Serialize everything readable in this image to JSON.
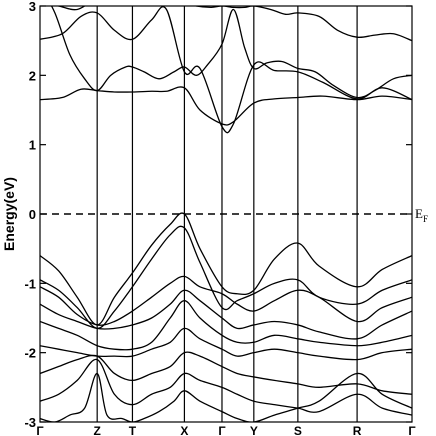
{
  "chart_data": {
    "type": "line",
    "title": "",
    "xlabel": "",
    "ylabel": "Energy(eV)",
    "ylim": [
      -3,
      3
    ],
    "yticks": [
      "-3",
      "-2",
      "-1",
      "0",
      "1",
      "2",
      "3"
    ],
    "ytick_values": [
      -3,
      -2,
      -1,
      0,
      1,
      2,
      3
    ],
    "kpath_labels": [
      "Γ",
      "Z",
      "T",
      "X",
      "Γ",
      "Y",
      "S",
      "R",
      "Γ"
    ],
    "kpath_positions": [
      0,
      1.537,
      2.485,
      3.882,
      4.892,
      5.748,
      6.932,
      8.524,
      10
    ],
    "fermi_level": 0,
    "fermi_label": "E",
    "fermi_subscript": "F",
    "colors": {
      "line": "#000000",
      "axis": "#000000",
      "background": "#ffffff"
    },
    "series": [
      {
        "x": [
          0,
          0.6,
          1.1,
          1.537,
          2.0,
          2.485,
          3.0,
          3.4,
          3.882,
          4.3,
          4.892,
          5.2,
          5.748,
          6.3,
          6.932,
          7.6,
          8.524,
          9.2,
          10
        ],
        "values": [
          1.65,
          1.68,
          1.8,
          1.78,
          1.76,
          1.76,
          1.77,
          1.77,
          1.82,
          1.5,
          1.3,
          1.33,
          1.6,
          1.66,
          1.68,
          1.7,
          1.65,
          1.7,
          1.65
        ]
      },
      {
        "x": [
          0,
          0.6,
          1.1,
          1.537,
          2.0,
          2.485,
          3.0,
          3.4,
          3.882,
          4.3,
          4.892,
          5.2,
          5.748,
          6.3,
          6.932,
          7.6,
          8.524,
          9.2,
          10
        ],
        "values": [
          2.52,
          2.6,
          2.85,
          2.9,
          2.65,
          2.52,
          2.8,
          2.95,
          2.05,
          2.1,
          1.26,
          1.3,
          2.15,
          2.07,
          2.05,
          1.9,
          1.66,
          1.82,
          1.65
        ]
      },
      {
        "x": [
          0,
          0.4,
          0.8,
          1.2,
          1.537,
          1.9,
          2.3,
          2.485,
          2.8,
          3.2,
          3.6,
          3.882,
          4.2,
          4.5,
          4.892,
          5.2,
          5.5,
          5.748,
          6.1,
          6.5,
          6.932,
          7.4,
          7.9,
          8.524,
          9.0,
          9.5,
          10
        ],
        "values": [
          3.3,
          2.9,
          2.3,
          1.95,
          1.78,
          2.0,
          2.12,
          2.12,
          2.05,
          1.95,
          2.05,
          2.12,
          2.0,
          2.15,
          2.45,
          2.95,
          2.4,
          2.1,
          2.18,
          2.2,
          2.1,
          2.05,
          1.85,
          1.68,
          1.78,
          1.95,
          2.0
        ]
      },
      {
        "x": [
          0,
          0.5,
          1.0,
          1.537,
          2.0,
          2.485,
          3.0,
          3.5,
          3.882,
          4.2,
          4.6,
          4.892,
          5.2,
          5.5,
          5.748,
          6.2,
          6.6,
          6.932,
          7.5,
          8.0,
          8.524,
          9.0,
          9.5,
          10
        ],
        "values": [
          3.05,
          3.0,
          2.95,
          3.1,
          3.05,
          3.1,
          3.1,
          3.05,
          3.05,
          3.0,
          2.98,
          3.0,
          2.98,
          2.98,
          3.0,
          2.95,
          2.88,
          2.9,
          2.85,
          2.65,
          2.55,
          2.58,
          2.6,
          2.5
        ]
      },
      {
        "x": [
          0,
          0.5,
          1.0,
          1.537,
          2.0,
          2.485,
          3.0,
          3.5,
          3.882,
          4.3,
          4.892,
          5.3,
          5.748,
          6.3,
          6.932,
          7.5,
          8.524,
          9.2,
          10
        ],
        "values": [
          -0.6,
          -0.82,
          -1.2,
          -1.6,
          -1.2,
          -0.85,
          -0.45,
          -0.15,
          0.0,
          -0.5,
          -1.05,
          -1.15,
          -1.1,
          -0.65,
          -0.42,
          -0.75,
          -1.05,
          -0.8,
          -0.6
        ]
      },
      {
        "x": [
          0,
          0.5,
          1.0,
          1.537,
          2.0,
          2.485,
          3.0,
          3.5,
          3.882,
          4.3,
          4.892,
          5.3,
          5.748,
          6.3,
          6.932,
          7.5,
          8.524,
          9.2,
          10
        ],
        "values": [
          -0.95,
          -1.1,
          -1.35,
          -1.65,
          -1.4,
          -1.05,
          -0.65,
          -0.3,
          -0.2,
          -0.7,
          -1.35,
          -1.25,
          -1.15,
          -1.0,
          -0.95,
          -1.2,
          -1.3,
          -1.1,
          -0.95
        ]
      },
      {
        "x": [
          0,
          0.5,
          1.0,
          1.537,
          2.0,
          2.485,
          3.0,
          3.5,
          3.882,
          4.3,
          4.892,
          5.3,
          5.748,
          6.3,
          6.932,
          7.5,
          8.524,
          9.2,
          10
        ],
        "values": [
          -1.05,
          -1.2,
          -1.45,
          -1.6,
          -1.55,
          -1.4,
          -1.2,
          -1.0,
          -0.9,
          -1.05,
          -1.15,
          -1.3,
          -1.4,
          -1.25,
          -1.1,
          -1.2,
          -1.55,
          -1.35,
          -1.2
        ]
      },
      {
        "x": [
          0,
          0.5,
          1.0,
          1.537,
          2.0,
          2.485,
          3.0,
          3.5,
          3.882,
          4.3,
          4.892,
          5.3,
          5.748,
          6.3,
          6.932,
          7.5,
          8.524,
          9.2,
          10
        ],
        "values": [
          -1.3,
          -1.45,
          -1.55,
          -1.65,
          -1.65,
          -1.6,
          -1.5,
          -1.3,
          -1.1,
          -1.25,
          -1.5,
          -1.65,
          -1.6,
          -1.55,
          -1.6,
          -1.7,
          -1.8,
          -1.6,
          -1.4
        ]
      },
      {
        "x": [
          0,
          0.5,
          1.0,
          1.537,
          2.0,
          2.485,
          3.0,
          3.5,
          3.882,
          4.3,
          4.892,
          5.3,
          5.748,
          6.3,
          6.932,
          7.5,
          8.524,
          9.2,
          10
        ],
        "values": [
          -1.55,
          -1.65,
          -1.75,
          -1.9,
          -1.95,
          -1.95,
          -1.85,
          -1.5,
          -1.25,
          -1.5,
          -1.75,
          -1.85,
          -1.85,
          -1.75,
          -1.8,
          -1.85,
          -1.9,
          -1.85,
          -1.75
        ]
      },
      {
        "x": [
          0,
          0.5,
          1.0,
          1.537,
          2.0,
          2.485,
          3.0,
          3.5,
          3.882,
          4.3,
          4.892,
          5.3,
          5.748,
          6.3,
          6.932,
          7.5,
          8.524,
          9.2,
          10
        ],
        "values": [
          -1.9,
          -1.95,
          -2.0,
          -2.05,
          -2.05,
          -2.05,
          -1.95,
          -1.85,
          -1.65,
          -1.8,
          -1.95,
          -2.05,
          -2.0,
          -1.95,
          -2.0,
          -2.05,
          -2.1,
          -2.0,
          -1.95
        ]
      },
      {
        "x": [
          0,
          0.5,
          1.0,
          1.537,
          2.0,
          2.485,
          3.0,
          3.5,
          3.882,
          4.3,
          4.892,
          5.3,
          5.748,
          6.3,
          6.932,
          7.5,
          8.524,
          9.2,
          10
        ],
        "values": [
          -2.3,
          -2.2,
          -2.1,
          -2.05,
          -2.3,
          -2.4,
          -2.3,
          -2.2,
          -2.0,
          -2.05,
          -2.2,
          -2.3,
          -2.35,
          -2.4,
          -2.45,
          -2.5,
          -2.45,
          -2.55,
          -2.6
        ]
      },
      {
        "x": [
          0,
          0.5,
          1.0,
          1.537,
          2.0,
          2.485,
          3.0,
          3.5,
          3.882,
          4.3,
          4.892,
          5.3,
          5.748,
          6.3,
          6.932,
          7.5,
          8.524,
          9.2,
          10
        ],
        "values": [
          -2.7,
          -2.6,
          -2.4,
          -2.1,
          -2.6,
          -2.75,
          -2.6,
          -2.5,
          -2.3,
          -2.4,
          -2.5,
          -2.6,
          -2.7,
          -2.75,
          -2.8,
          -2.85,
          -2.6,
          -2.8,
          -2.9
        ]
      },
      {
        "x": [
          0,
          0.4,
          0.8,
          1.2,
          1.537,
          1.8,
          2.2,
          2.485,
          2.8,
          3.2,
          3.6,
          3.882,
          4.3,
          4.892,
          5.3,
          5.748,
          6.3,
          6.932,
          7.5,
          8.524,
          9.2,
          10
        ],
        "values": [
          -2.95,
          -3.0,
          -2.9,
          -2.8,
          -2.3,
          -2.9,
          -2.95,
          -3.0,
          -2.95,
          -2.85,
          -2.7,
          -2.55,
          -2.7,
          -2.85,
          -2.95,
          -3.0,
          -2.9,
          -2.8,
          -2.7,
          -2.3,
          -2.6,
          -2.8
        ]
      }
    ]
  }
}
